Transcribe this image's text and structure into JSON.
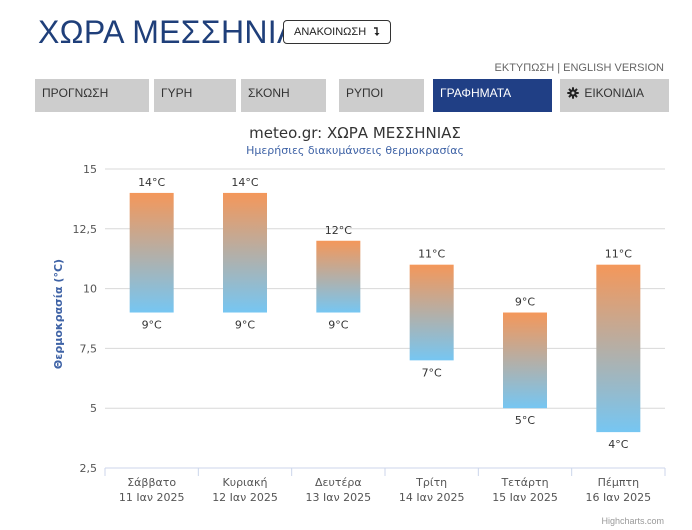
{
  "header": {
    "title": "ΧΩΡΑ ΜΕΣΣΗΝΙΑΣ",
    "announce_label": "ΑΝΑΚΟΙΝΩΣΗ",
    "announce_icon": "arrow-down-icon"
  },
  "top_links": {
    "print": "ΕΚΤΥΠΩΣΗ",
    "separator": "|",
    "english": "ENGLISH VERSION"
  },
  "nav": {
    "tabs": [
      {
        "label": "ΠΡΟΓΝΩΣΗ"
      },
      {
        "label": "ΓΥΡΗ"
      },
      {
        "label": "ΣΚΟΝΗ"
      },
      {
        "label": "ΡΥΠΟΙ"
      },
      {
        "label": "ΓΡΑΦΗΜΑΤΑ",
        "active": true
      },
      {
        "label": "ΕΙΚΟΝΙΔΙΑ",
        "icon": "gear-icon"
      }
    ]
  },
  "colors": {
    "accent": "#203f85",
    "title": "#1f3f7a",
    "bar_top": "#f4975a",
    "bar_bottom": "#76c6f2",
    "subtitle": "#3f63a6"
  },
  "chart_data": {
    "type": "bar",
    "subtype": "columnrange",
    "title": "meteo.gr: ΧΩΡΑ ΜΕΣΣΗΝΙΑΣ",
    "subtitle": "Ημερήσιες διακυμάνσεις θερμοκρασίας",
    "ylabel": "Θερμοκρασία (°C)",
    "xlabel": "",
    "ylim": [
      2.5,
      15
    ],
    "yticks": [
      2.5,
      5,
      7.5,
      10,
      12.5,
      15
    ],
    "ytick_labels": [
      "2,5",
      "5",
      "7,5",
      "10",
      "12,5",
      "15"
    ],
    "grid": true,
    "unit": "°C",
    "categories": [
      [
        "Σάββατο",
        "11 Ιαν 2025"
      ],
      [
        "Κυριακή",
        "12 Ιαν 2025"
      ],
      [
        "Δευτέρα",
        "13 Ιαν 2025"
      ],
      [
        "Τρίτη",
        "14 Ιαν 2025"
      ],
      [
        "Τετάρτη",
        "15 Ιαν 2025"
      ],
      [
        "Πέμπτη",
        "16 Ιαν 2025"
      ]
    ],
    "series": [
      {
        "low": [
          9,
          9,
          9,
          7,
          5,
          4
        ],
        "high": [
          14,
          14,
          12,
          11,
          9,
          11
        ]
      }
    ],
    "credits": "Highcharts.com"
  }
}
